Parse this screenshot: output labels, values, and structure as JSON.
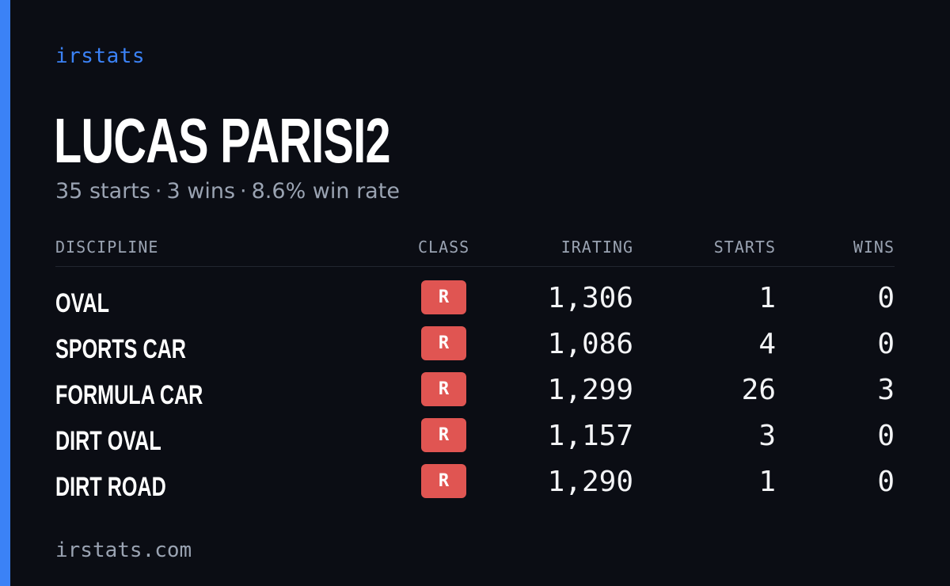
{
  "brand": "irstats",
  "driver": {
    "name": "LUCAS PARISI2",
    "starts": "35 starts",
    "wins": "3 wins",
    "win_rate": "8.6% win rate",
    "separator": "·"
  },
  "table": {
    "headers": {
      "discipline": "DISCIPLINE",
      "class": "CLASS",
      "irating": "IRATING",
      "starts": "STARTS",
      "wins": "WINS"
    },
    "rows": [
      {
        "discipline": "OVAL",
        "class": "R",
        "irating": "1,306",
        "starts": "1",
        "wins": "0"
      },
      {
        "discipline": "SPORTS CAR",
        "class": "R",
        "irating": "1,086",
        "starts": "4",
        "wins": "0"
      },
      {
        "discipline": "FORMULA CAR",
        "class": "R",
        "irating": "1,299",
        "starts": "26",
        "wins": "3"
      },
      {
        "discipline": "DIRT OVAL",
        "class": "R",
        "irating": "1,157",
        "starts": "3",
        "wins": "0"
      },
      {
        "discipline": "DIRT ROAD",
        "class": "R",
        "irating": "1,290",
        "starts": "1",
        "wins": "0"
      }
    ]
  },
  "footer": "irstats.com",
  "colors": {
    "background": "#0b0d14",
    "accent": "#3b82f6",
    "class_badge": "#e05552",
    "muted_text": "#9aa3b2"
  }
}
